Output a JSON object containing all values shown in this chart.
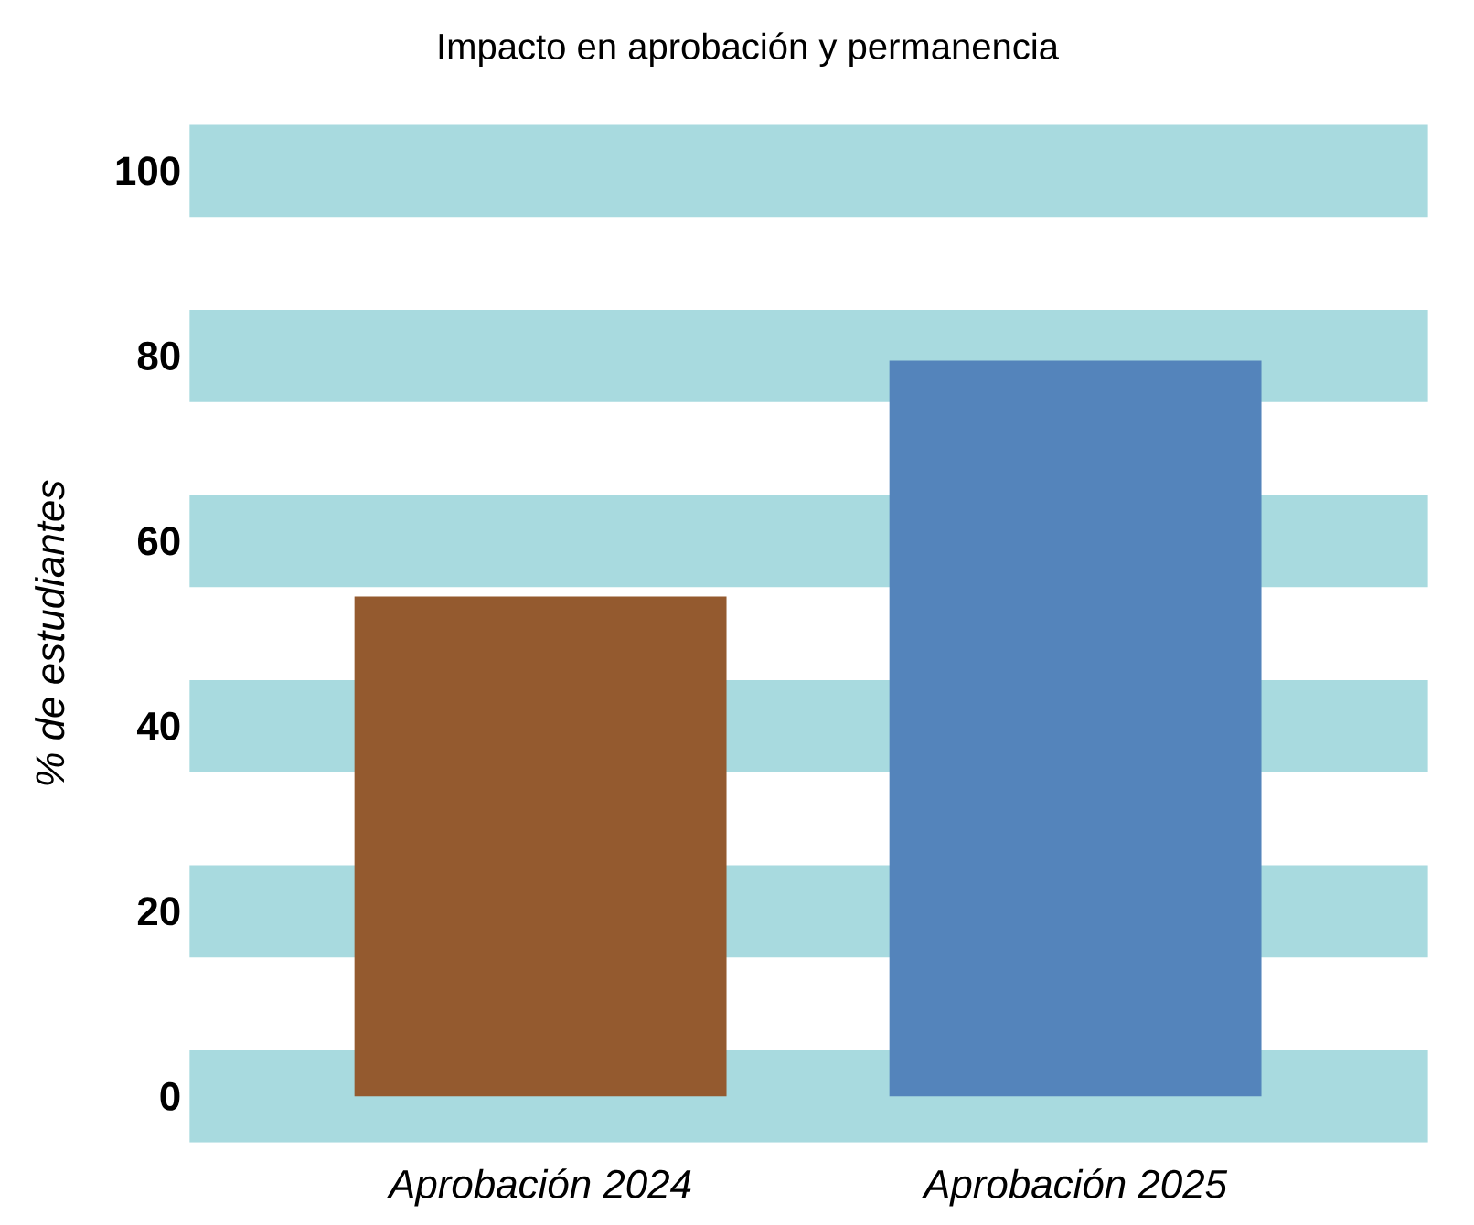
{
  "chart_data": {
    "type": "bar",
    "title": "Impacto en aprobación y permanencia",
    "ylabel": "% de estudiantes",
    "categories": [
      "Aprobación 2024",
      "Aprobación 2025"
    ],
    "values": [
      54,
      79.5
    ],
    "colors": [
      "#945a2f",
      "#5484bb"
    ],
    "ylim": [
      0,
      100
    ],
    "yticks": [
      0,
      20,
      40,
      60,
      80,
      100
    ],
    "grid": "y"
  }
}
